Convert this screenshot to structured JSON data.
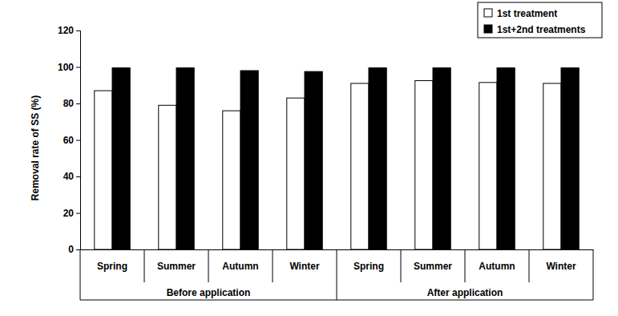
{
  "chart_data": {
    "type": "bar",
    "ylabel": "Removal rate of SS (%)",
    "categories": [
      "Spring",
      "Summer",
      "Autumn",
      "Winter",
      "Spring",
      "Summer",
      "Autumn",
      "Winter"
    ],
    "groups": [
      "Before application",
      "After application"
    ],
    "series": [
      {
        "name": "1st treatment",
        "color": "#ffffff",
        "values": [
          87,
          79,
          76,
          83,
          91,
          92.5,
          91.5,
          91
        ]
      },
      {
        "name": "1st+2nd treatments",
        "color": "#000000",
        "values": [
          99.5,
          99.5,
          98,
          97.5,
          99.5,
          99.5,
          99.5,
          99.5
        ]
      }
    ],
    "ylim": [
      0,
      120
    ],
    "yticks": [
      0,
      20,
      40,
      60,
      80,
      100,
      120
    ],
    "legend": "top-right",
    "grid": false
  }
}
